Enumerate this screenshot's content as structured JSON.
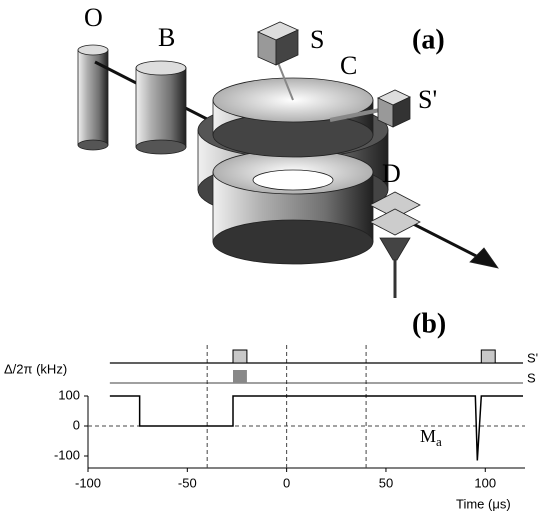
{
  "diagram": {
    "panel_label": "(a)",
    "labels": [
      "O",
      "B",
      "S",
      "C",
      "S'",
      "D"
    ]
  },
  "chart_data": {
    "type": "line",
    "panel_label": "(b)",
    "ylabel": "Δ/2π (kHz)",
    "xlabel": "Time (μs)",
    "xlim": [
      -100,
      120
    ],
    "xticks": [
      -100,
      -50,
      0,
      50,
      100
    ],
    "ylim": [
      -140,
      100
    ],
    "yticks": [
      -100,
      0,
      100
    ],
    "x": [
      -89,
      -74,
      -74,
      -27,
      -27,
      95,
      96,
      98,
      119
    ],
    "series": [
      {
        "name": "M",
        "name_subscript": "a",
        "color": "#000000",
        "values": [
          100,
          100,
          0,
          0,
          100,
          100,
          -115,
          100,
          100
        ]
      }
    ],
    "dashed_x": [
      -40,
      0,
      40
    ],
    "dashed_y": [
      0
    ],
    "pulse_trains": [
      {
        "name": "S'",
        "color": "#c8c8c8",
        "pulses": [
          [
            -27,
            -20
          ],
          [
            98,
            105
          ]
        ]
      },
      {
        "name": "S",
        "color": "#888888",
        "pulses": [
          [
            -27,
            -20
          ]
        ]
      }
    ]
  }
}
